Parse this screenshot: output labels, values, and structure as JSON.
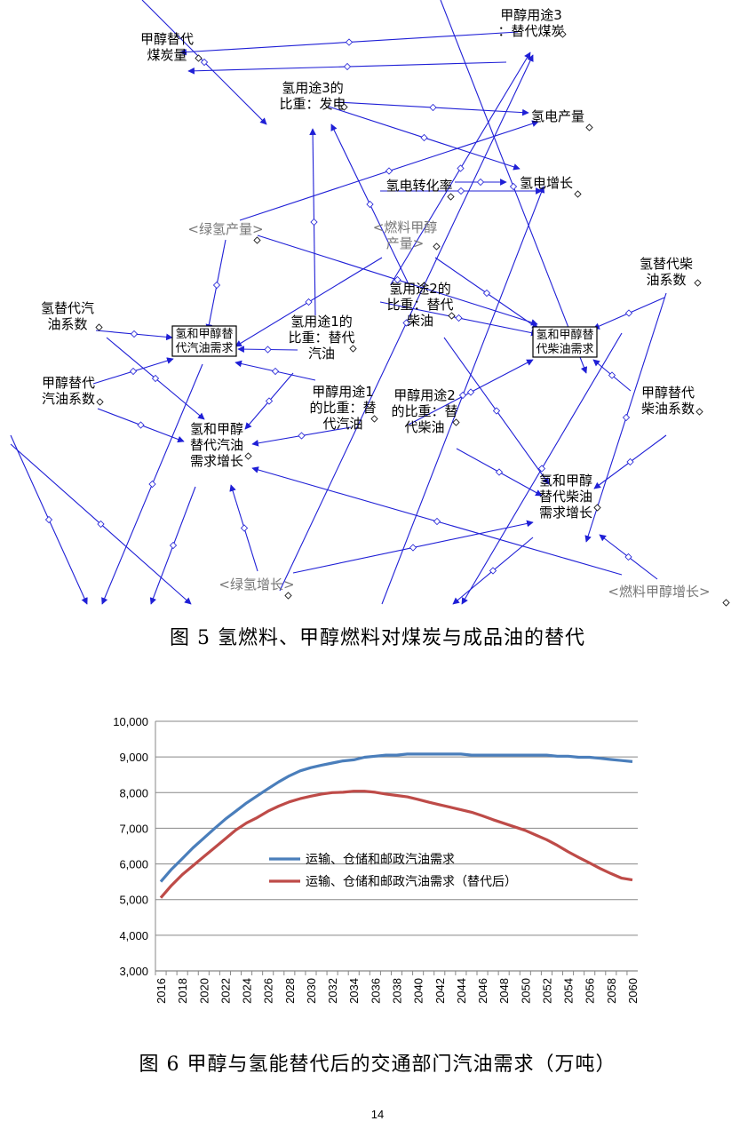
{
  "figure5": {
    "caption": "图 5 氢燃料、甲醇燃料对煤炭与成品油的替代",
    "nodes": {
      "methanol_use3": [
        "甲醇用途3",
        "：替代煤炭"
      ],
      "methanol_replace_coal": [
        "甲醇替代",
        "煤炭量"
      ],
      "hydrogen_use3": [
        "氢用途3的",
        "比重：发电"
      ],
      "hydrogen_power": [
        "氢电产量"
      ],
      "hydrogen_power_growth": [
        "氢电增长"
      ],
      "conversion_rate": [
        "氢电转化率"
      ],
      "green_h2_output": [
        "<绿氢产量>"
      ],
      "fuel_methanol_output": [
        "<燃料甲醇",
        "产量>"
      ],
      "h2_replace_diesel_coef": [
        "氢替代柴",
        "油系数"
      ],
      "h2_replace_gasoline_coef": [
        "氢替代汽",
        "油系数"
      ],
      "h2_use1": [
        "氢用途1的",
        "比重：替代",
        "汽油"
      ],
      "h2_use2": [
        "氢用途2的",
        "比重：替代",
        "柴油"
      ],
      "gasoline_demand_box": [
        "氢和甲醇替",
        "代汽油需求"
      ],
      "diesel_demand_box": [
        "氢和甲醇替",
        "代柴油需求"
      ],
      "methanol_replace_gasoline_coef": [
        "甲醇替代",
        "汽油系数"
      ],
      "methanol_use1": [
        "甲醇用途1",
        "的比重：替",
        "代汽油"
      ],
      "methanol_use2": [
        "甲醇用途2",
        "的比重：替",
        "代柴油"
      ],
      "methanol_replace_diesel_coef": [
        "甲醇替代",
        "柴油系数"
      ],
      "gasoline_growth": [
        "氢和甲醇",
        "替代汽油",
        "需求增长"
      ],
      "diesel_growth": [
        "氢和甲醇",
        "替代柴油",
        "需求增长"
      ],
      "green_h2_growth": [
        "<绿氢增长>"
      ],
      "fuel_methanol_growth": [
        "<燃料甲醇增长>"
      ]
    }
  },
  "figure6": {
    "caption": "图 6 甲醇与氢能替代后的交通部门汽油需求（万吨）"
  },
  "page_number": "14",
  "colors": {
    "arrow": "#1f1fd6",
    "series1": "#4a7ebb",
    "series2": "#be4b48",
    "grid": "#878787",
    "ghost_text": "#777777"
  },
  "chart_data": {
    "type": "line",
    "title": "",
    "xlabel": "",
    "ylabel": "",
    "x": [
      2016,
      2017,
      2018,
      2019,
      2020,
      2021,
      2022,
      2023,
      2024,
      2025,
      2026,
      2027,
      2028,
      2029,
      2030,
      2031,
      2032,
      2033,
      2034,
      2035,
      2036,
      2037,
      2038,
      2039,
      2040,
      2041,
      2042,
      2043,
      2044,
      2045,
      2046,
      2047,
      2048,
      2049,
      2050,
      2051,
      2052,
      2053,
      2054,
      2055,
      2056,
      2057,
      2058,
      2059,
      2060
    ],
    "x_tick_labels": [
      "2016",
      "2018",
      "2020",
      "2022",
      "2024",
      "2026",
      "2028",
      "2030",
      "2032",
      "2034",
      "2036",
      "2038",
      "2040",
      "2042",
      "2044",
      "2046",
      "2048",
      "2050",
      "2052",
      "2054",
      "2056",
      "2058",
      "2060"
    ],
    "ylim": [
      3000,
      10000
    ],
    "y_ticks": [
      3000,
      4000,
      5000,
      6000,
      7000,
      8000,
      9000,
      10000
    ],
    "y_tick_labels": [
      "3,000",
      "4,000",
      "5,000",
      "6,000",
      "7,000",
      "8,000",
      "9,000",
      "10,000"
    ],
    "grid": "horizontal",
    "legend_position": "center",
    "series": [
      {
        "name": "运输、仓储和邮政汽油需求",
        "color": "#4a7ebb",
        "values": [
          5500,
          5850,
          6150,
          6450,
          6720,
          6990,
          7250,
          7480,
          7710,
          7910,
          8110,
          8300,
          8470,
          8610,
          8700,
          8770,
          8830,
          8890,
          8920,
          8990,
          9020,
          9050,
          9050,
          9080,
          9080,
          9080,
          9080,
          9080,
          9080,
          9050,
          9050,
          9050,
          9050,
          9050,
          9050,
          9050,
          9050,
          9020,
          9020,
          8990,
          8990,
          8960,
          8930,
          8900,
          8870
        ]
      },
      {
        "name": "运输、仓储和邮政汽油需求（替代后）",
        "color": "#be4b48",
        "values": [
          5050,
          5400,
          5700,
          5950,
          6200,
          6450,
          6700,
          6950,
          7150,
          7300,
          7480,
          7620,
          7740,
          7830,
          7900,
          7960,
          8000,
          8010,
          8040,
          8040,
          8010,
          7960,
          7920,
          7880,
          7810,
          7730,
          7660,
          7590,
          7520,
          7450,
          7350,
          7240,
          7140,
          7040,
          6940,
          6810,
          6680,
          6520,
          6340,
          6180,
          6030,
          5870,
          5730,
          5600,
          5550
        ]
      }
    ]
  }
}
